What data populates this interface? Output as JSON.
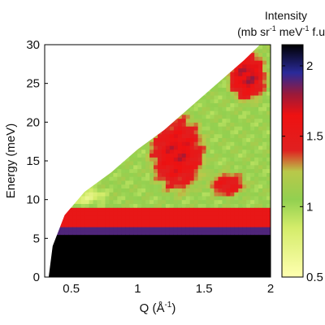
{
  "chart_data": {
    "type": "heatmap",
    "title": "",
    "xlabel": "Q (Å",
    "xlabel_sup": "-1",
    "xlabel_close": ")",
    "ylabel": "Energy (meV)",
    "xlim": [
      0.3,
      2.0
    ],
    "ylim": [
      0,
      30
    ],
    "xticks": [
      0.5,
      1,
      1.5,
      2
    ],
    "xtick_labels": [
      "0.5",
      "1",
      "1.5",
      "2"
    ],
    "yticks": [
      0,
      5,
      10,
      15,
      20,
      25,
      30
    ],
    "ytick_labels": [
      "0",
      "5",
      "10",
      "15",
      "20",
      "25",
      "30"
    ],
    "kinematic_boundary": {
      "description_points_q_e": [
        [
          0.33,
          0
        ],
        [
          0.36,
          4
        ],
        [
          0.45,
          8
        ],
        [
          0.6,
          11
        ],
        [
          0.8,
          13.5
        ],
        [
          1.0,
          16.5
        ],
        [
          1.2,
          19
        ],
        [
          1.4,
          22
        ],
        [
          1.6,
          25
        ],
        [
          1.8,
          28
        ],
        [
          1.92,
          30
        ]
      ]
    },
    "energy_bands": [
      {
        "e_range": [
          0,
          5.7
        ],
        "intensity": 2.15
      },
      {
        "e_range": [
          5.7,
          6.7
        ],
        "intensity": 1.9
      },
      {
        "e_range": [
          6.7,
          8.8
        ],
        "intensity": 1.55
      },
      {
        "e_range": [
          8.8,
          30
        ],
        "intensity": 1.05
      }
    ],
    "features": [
      {
        "q_range": [
          1.05,
          1.55
        ],
        "e_range": [
          10,
          22
        ],
        "intensity": 1.5
      },
      {
        "q_range": [
          1.65,
          2.0
        ],
        "e_range": [
          22,
          30
        ],
        "intensity": 1.55
      },
      {
        "q_range": [
          1.5,
          1.85
        ],
        "e_range": [
          10,
          14
        ],
        "intensity": 1.4
      },
      {
        "q_range": [
          0.4,
          0.8
        ],
        "e_range": [
          9,
          12
        ],
        "intensity": 0.85
      }
    ],
    "colorbar": {
      "title_line1": "Intensity",
      "title_line2_pre": "(mb sr",
      "title_line2_sup1": "-1",
      "title_line2_mid": " meV",
      "title_line2_sup2": "-1",
      "title_line2_post": " f.u",
      "range": [
        0.5,
        2.15
      ],
      "ticks": [
        0.5,
        1,
        1.5,
        2
      ],
      "tick_labels": [
        "0.5",
        "1",
        "1.5",
        "2"
      ],
      "colormap": [
        {
          "v": 0.5,
          "color": "#ffffb0"
        },
        {
          "v": 0.85,
          "color": "#d4ec6a"
        },
        {
          "v": 1.05,
          "color": "#92d050"
        },
        {
          "v": 1.25,
          "color": "#b9c84a"
        },
        {
          "v": 1.4,
          "color": "#e02020"
        },
        {
          "v": 1.65,
          "color": "#ee1111"
        },
        {
          "v": 1.8,
          "color": "#9a1a3a"
        },
        {
          "v": 1.95,
          "color": "#2a2a9a"
        },
        {
          "v": 2.15,
          "color": "#000000"
        }
      ]
    }
  }
}
